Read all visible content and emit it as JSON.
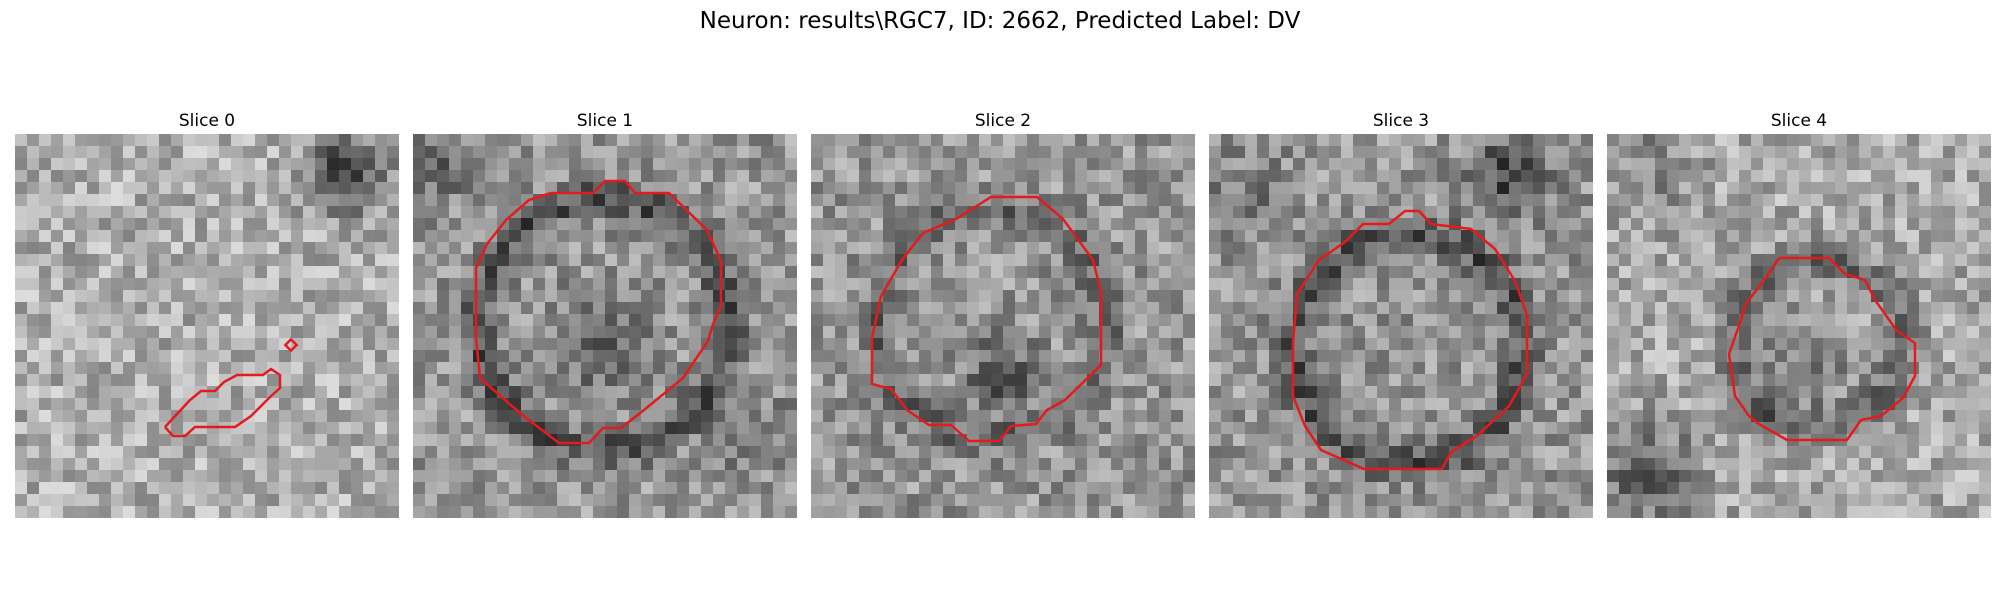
{
  "figure": {
    "title": "Neuron: results\\RGC7, ID: 2662, Predicted Label: DV",
    "contour_color": "#e41a1c",
    "colormap": "grayscale"
  },
  "slices": [
    {
      "title": "Slice 0"
    },
    {
      "title": "Slice 1"
    },
    {
      "title": "Slice 2"
    },
    {
      "title": "Slice 3"
    },
    {
      "title": "Slice 4"
    }
  ]
}
